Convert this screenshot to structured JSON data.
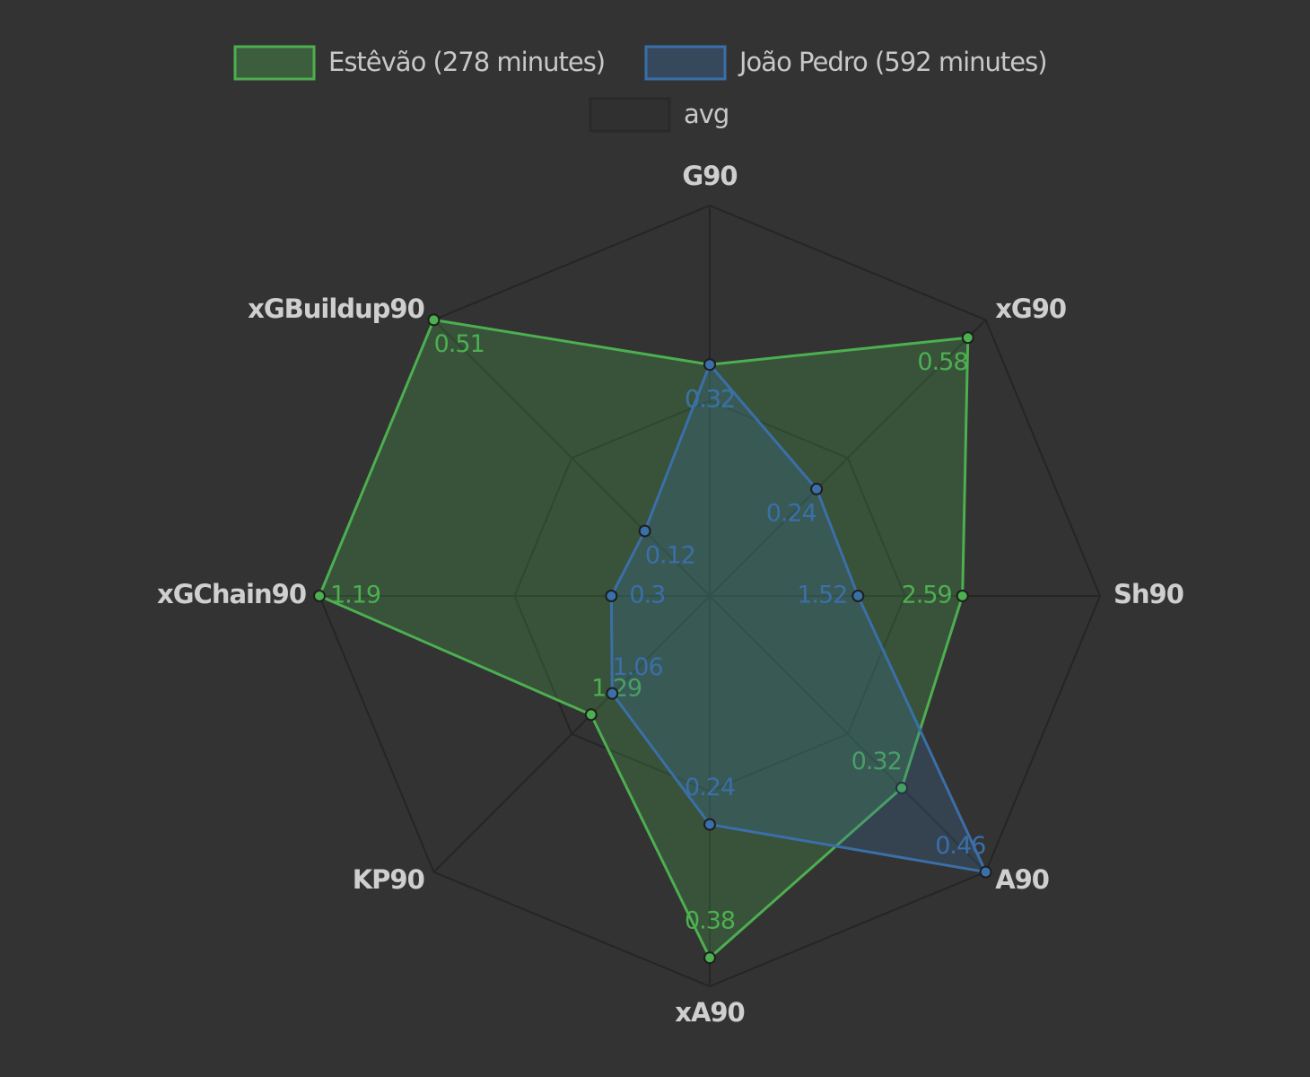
{
  "chart_data": {
    "type": "radar",
    "axes": [
      {
        "name": "G90",
        "lim": [
          0,
          0.54
        ]
      },
      {
        "name": "xG90",
        "lim": [
          0,
          0.62
        ]
      },
      {
        "name": "Sh90",
        "lim": [
          0,
          4
        ]
      },
      {
        "name": "A90",
        "lim": [
          0,
          0.46
        ]
      },
      {
        "name": "xA90",
        "lim": [
          0,
          0.41
        ]
      },
      {
        "name": "KP90",
        "lim": [
          0,
          3
        ]
      },
      {
        "name": "xGChain90",
        "lim": [
          0,
          1.19
        ]
      },
      {
        "name": "xGBuildup90",
        "lim": [
          0,
          0.51
        ]
      }
    ],
    "series": [
      {
        "name": "Estêvão (278 minutes)",
        "color": "#4caf50",
        "values": [
          0.32,
          0.58,
          2.59,
          0.32,
          0.38,
          1.29,
          1.19,
          0.51
        ]
      },
      {
        "name": "João Pedro (592 minutes)",
        "color": "#3a6fa8",
        "values": [
          0.32,
          0.24,
          1.52,
          0.46,
          0.24,
          1.06,
          0.3,
          0.12
        ]
      },
      {
        "name": "avg",
        "color": "#2a2a2a"
      }
    ]
  }
}
